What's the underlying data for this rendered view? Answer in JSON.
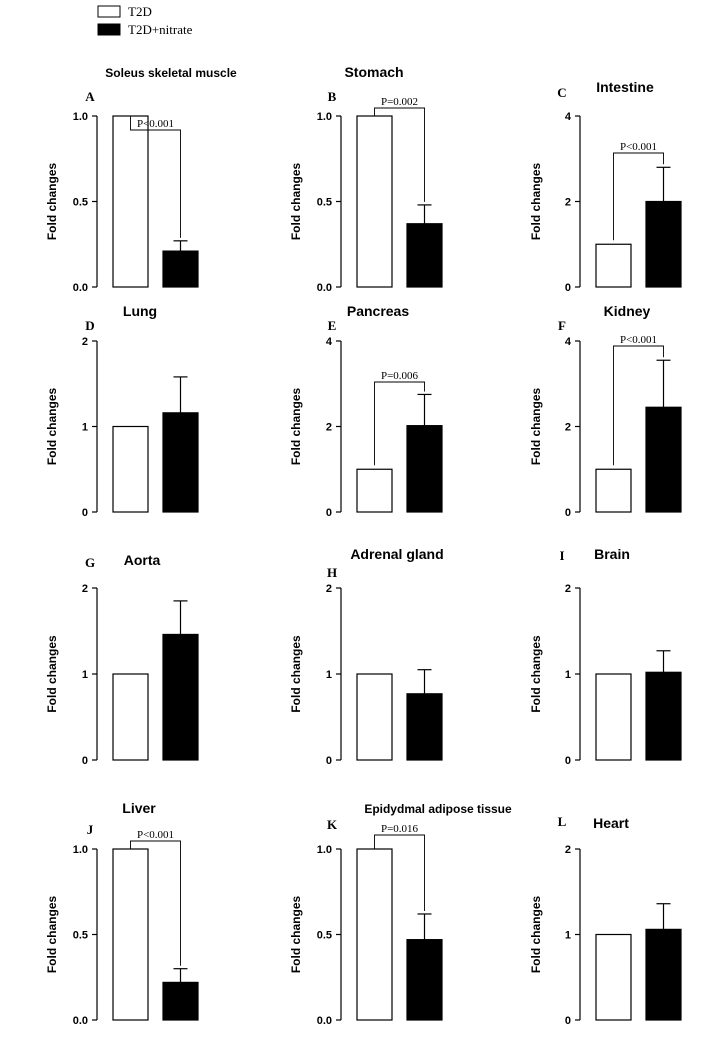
{
  "legend": [
    {
      "label": "T2D",
      "fill": "#ffffff"
    },
    {
      "label": "T2D+nitrate",
      "fill": "#000000"
    }
  ],
  "colors": {
    "control": "#ffffff",
    "nitrate": "#000000",
    "stroke": "#000000"
  },
  "chart_data": [
    {
      "type": "bar",
      "letter": "A",
      "title": "Soleus skeletal muscle",
      "ylabel": "Fold changes",
      "categories": [
        "T2D",
        "T2D+nitrate"
      ],
      "values": [
        1.0,
        0.21
      ],
      "errors": [
        0,
        0.06
      ],
      "ylim": [
        0,
        1.0
      ],
      "ticks": [
        "0.0",
        "0.5",
        "1.0"
      ],
      "pvalue": "P<0.001"
    },
    {
      "type": "bar",
      "letter": "B",
      "title": "Stomach",
      "ylabel": "Fold changes",
      "categories": [
        "T2D",
        "T2D+nitrate"
      ],
      "values": [
        1.0,
        0.37
      ],
      "errors": [
        0,
        0.11
      ],
      "ylim": [
        0,
        1.0
      ],
      "ticks": [
        "0.0",
        "0.5",
        "1.0"
      ],
      "pvalue": "P=0.002"
    },
    {
      "type": "bar",
      "letter": "C",
      "title": "Intestine",
      "ylabel": "Fold changes",
      "categories": [
        "T2D",
        "T2D+nitrate"
      ],
      "values": [
        1.0,
        2.0
      ],
      "errors": [
        0,
        0.8
      ],
      "ylim": [
        0,
        4
      ],
      "ticks": [
        "0",
        "2",
        "4"
      ],
      "pvalue": "P<0.001"
    },
    {
      "type": "bar",
      "letter": "D",
      "title": "Lung",
      "ylabel": "Fold changes",
      "categories": [
        "T2D",
        "T2D+nitrate"
      ],
      "values": [
        1.0,
        1.16
      ],
      "errors": [
        0,
        0.42
      ],
      "ylim": [
        0,
        2
      ],
      "ticks": [
        "0",
        "1",
        "2"
      ],
      "pvalue": ""
    },
    {
      "type": "bar",
      "letter": "E",
      "title": "Pancreas",
      "ylabel": "Fold changes",
      "categories": [
        "T2D",
        "T2D+nitrate"
      ],
      "values": [
        1.0,
        2.02
      ],
      "errors": [
        0,
        0.73
      ],
      "ylim": [
        0,
        4
      ],
      "ticks": [
        "0",
        "2",
        "4"
      ],
      "pvalue": "P=0.006"
    },
    {
      "type": "bar",
      "letter": "F",
      "title": "Kidney",
      "ylabel": "Fold changes",
      "categories": [
        "T2D",
        "T2D+nitrate"
      ],
      "values": [
        1.0,
        2.45
      ],
      "errors": [
        0,
        1.1
      ],
      "ylim": [
        0,
        4
      ],
      "ticks": [
        "0",
        "2",
        "4"
      ],
      "pvalue": "P<0.001"
    },
    {
      "type": "bar",
      "letter": "G",
      "title": "Aorta",
      "ylabel": "Fold changes",
      "categories": [
        "T2D",
        "T2D+nitrate"
      ],
      "values": [
        1.0,
        1.46
      ],
      "errors": [
        0,
        0.39
      ],
      "ylim": [
        0,
        2
      ],
      "ticks": [
        "0",
        "1",
        "2"
      ],
      "pvalue": ""
    },
    {
      "type": "bar",
      "letter": "H",
      "title": "Adrenal gland",
      "ylabel": "Fold changes",
      "categories": [
        "T2D",
        "T2D+nitrate"
      ],
      "values": [
        1.0,
        0.77
      ],
      "errors": [
        0,
        0.28
      ],
      "ylim": [
        0,
        2
      ],
      "ticks": [
        "0",
        "1",
        "2"
      ],
      "pvalue": ""
    },
    {
      "type": "bar",
      "letter": "I",
      "title": "Brain",
      "ylabel": "Fold changes",
      "categories": [
        "T2D",
        "T2D+nitrate"
      ],
      "values": [
        1.0,
        1.02
      ],
      "errors": [
        0,
        0.25
      ],
      "ylim": [
        0,
        2
      ],
      "ticks": [
        "0",
        "1",
        "2"
      ],
      "pvalue": ""
    },
    {
      "type": "bar",
      "letter": "J",
      "title": "Liver",
      "ylabel": "Fold changes",
      "categories": [
        "T2D",
        "T2D+nitrate"
      ],
      "values": [
        1.0,
        0.22
      ],
      "errors": [
        0,
        0.08
      ],
      "ylim": [
        0,
        1.0
      ],
      "ticks": [
        "0.0",
        "0.5",
        "1.0"
      ],
      "pvalue": "P<0.001"
    },
    {
      "type": "bar",
      "letter": "K",
      "title": "Epidydmal adipose tissue",
      "ylabel": "Fold changes",
      "categories": [
        "T2D",
        "T2D+nitrate"
      ],
      "values": [
        1.0,
        0.47
      ],
      "errors": [
        0,
        0.15
      ],
      "ylim": [
        0,
        1.0
      ],
      "ticks": [
        "0.0",
        "0.5",
        "1.0"
      ],
      "pvalue": "P=0.016"
    },
    {
      "type": "bar",
      "letter": "L",
      "title": "Heart",
      "ylabel": "Fold changes",
      "categories": [
        "T2D",
        "T2D+nitrate"
      ],
      "values": [
        1.0,
        1.06
      ],
      "errors": [
        0,
        0.3
      ],
      "ylim": [
        0,
        2
      ],
      "ticks": [
        "0",
        "1",
        "2"
      ],
      "pvalue": ""
    }
  ]
}
